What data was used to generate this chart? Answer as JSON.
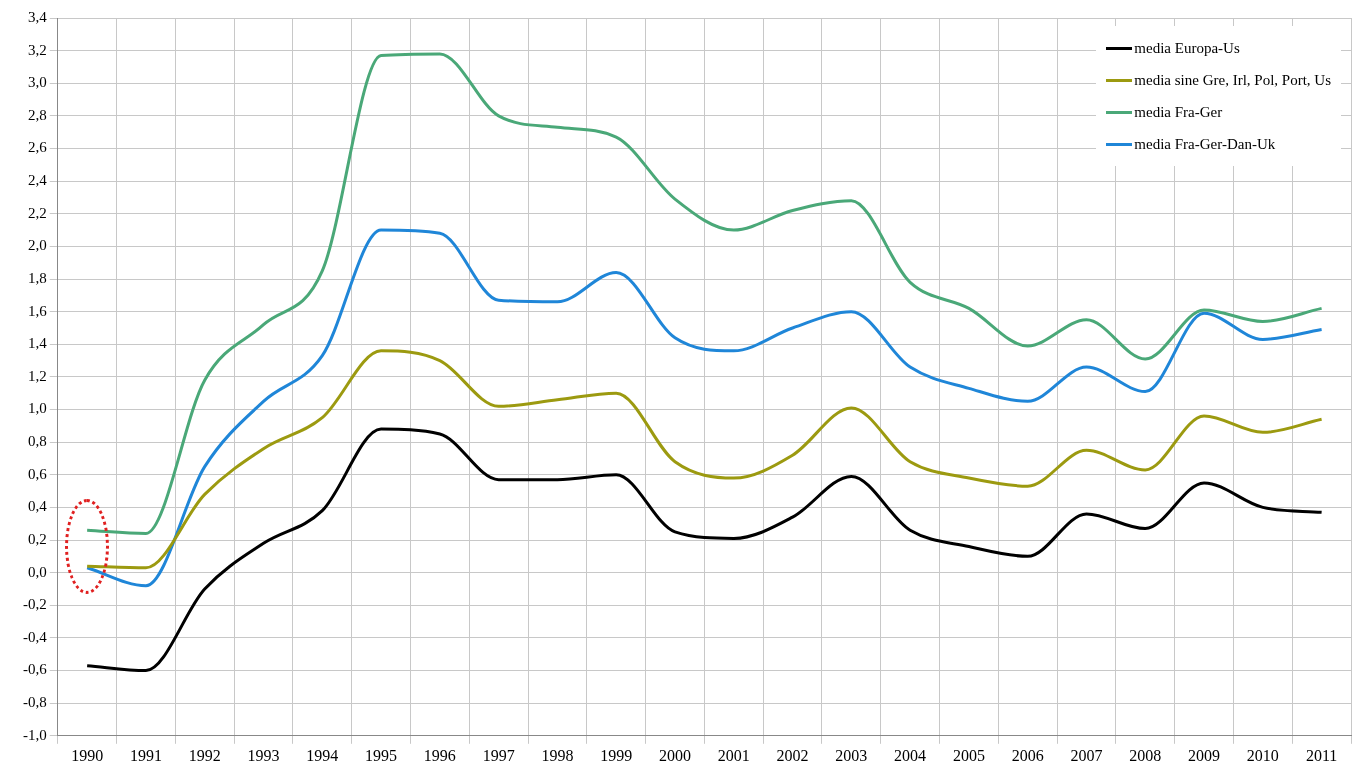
{
  "chart_data": {
    "type": "line",
    "categories": [
      "1990",
      "1991",
      "1992",
      "1993",
      "1994",
      "1995",
      "1996",
      "1997",
      "1998",
      "1999",
      "2000",
      "2001",
      "2002",
      "2003",
      "2004",
      "2005",
      "2006",
      "2007",
      "2008",
      "2009",
      "2010",
      "2011"
    ],
    "series": [
      {
        "name": "media Europa-Us",
        "color": "#000000",
        "values": [
          -0.57,
          -0.6,
          -0.1,
          0.18,
          0.38,
          0.88,
          0.85,
          0.57,
          0.57,
          0.6,
          0.25,
          0.21,
          0.34,
          0.59,
          0.26,
          0.16,
          0.1,
          0.36,
          0.27,
          0.55,
          0.4,
          0.37
        ]
      },
      {
        "name": "media sine Gre, Irl, Pol, Port, Us",
        "color": "#9c9a10",
        "values": [
          0.04,
          0.03,
          0.48,
          0.76,
          0.95,
          1.36,
          1.3,
          1.02,
          1.06,
          1.1,
          0.68,
          0.58,
          0.72,
          1.01,
          0.68,
          0.58,
          0.53,
          0.75,
          0.63,
          0.96,
          0.86,
          0.94
        ]
      },
      {
        "name": "media Fra-Ger",
        "color": "#4aa878",
        "values": [
          0.26,
          0.24,
          1.18,
          1.52,
          1.85,
          3.17,
          3.18,
          2.8,
          2.73,
          2.67,
          2.29,
          2.1,
          2.22,
          2.28,
          1.78,
          1.62,
          1.39,
          1.55,
          1.31,
          1.61,
          1.54,
          1.62
        ]
      },
      {
        "name": "media Fra-Ger-Dan-Uk",
        "color": "#1f86d8",
        "values": [
          0.03,
          -0.08,
          0.65,
          1.05,
          1.33,
          2.1,
          2.08,
          1.67,
          1.66,
          1.84,
          1.44,
          1.36,
          1.5,
          1.6,
          1.26,
          1.13,
          1.05,
          1.26,
          1.11,
          1.59,
          1.43,
          1.49
        ]
      }
    ],
    "ylim": [
      -1.0,
      3.4
    ],
    "yticks": [
      {
        "value": -1.0,
        "label": "-1,0"
      },
      {
        "value": -0.8,
        "label": "-0,8"
      },
      {
        "value": -0.6,
        "label": "-0,6"
      },
      {
        "value": -0.4,
        "label": "-0,4"
      },
      {
        "value": -0.2,
        "label": "-0,2"
      },
      {
        "value": 0,
        "label": "0,0"
      },
      {
        "value": 0.2,
        "label": "0,2"
      },
      {
        "value": 0.4,
        "label": "0,4"
      },
      {
        "value": 0.6,
        "label": "0,6"
      },
      {
        "value": 0.8,
        "label": "0,8"
      },
      {
        "value": 1.0,
        "label": "1,0"
      },
      {
        "value": 1.2,
        "label": "1,2"
      },
      {
        "value": 1.4,
        "label": "1,4"
      },
      {
        "value": 1.6,
        "label": "1,6"
      },
      {
        "value": 1.8,
        "label": "1,8"
      },
      {
        "value": 2.0,
        "label": "2,0"
      },
      {
        "value": 2.2,
        "label": "2,2"
      },
      {
        "value": 2.4,
        "label": "2,4"
      },
      {
        "value": 2.6,
        "label": "2,6"
      },
      {
        "value": 2.8,
        "label": "2,8"
      },
      {
        "value": 3.0,
        "label": "3,0"
      },
      {
        "value": 3.2,
        "label": "3,2"
      },
      {
        "value": 3.4,
        "label": "3,4"
      }
    ],
    "grid": true,
    "legend": "top right",
    "marker": "none",
    "line_style": "solid"
  }
}
